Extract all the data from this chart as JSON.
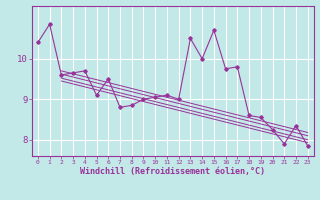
{
  "title": "",
  "xlabel": "Windchill (Refroidissement éolien,°C)",
  "bg_color": "#c2e8e8",
  "line_color": "#993399",
  "grid_color": "#b0d8d8",
  "hours": [
    0,
    1,
    2,
    3,
    4,
    5,
    6,
    7,
    8,
    9,
    10,
    11,
    12,
    13,
    14,
    15,
    16,
    17,
    18,
    19,
    20,
    21,
    22,
    23
  ],
  "windchill": [
    10.4,
    10.85,
    9.6,
    9.65,
    9.7,
    9.1,
    9.5,
    8.8,
    8.85,
    9.0,
    9.05,
    9.1,
    9.0,
    10.5,
    10.0,
    10.7,
    9.75,
    9.8,
    8.6,
    8.55,
    8.25,
    7.9,
    8.35,
    7.85
  ],
  "ylim": [
    7.6,
    11.3
  ],
  "yticks": [
    8,
    9,
    10
  ],
  "xlim": [
    -0.5,
    23.5
  ],
  "regression_lines": [
    {
      "x0": 2,
      "y0": 9.7,
      "x1": 23,
      "y1": 8.18
    },
    {
      "x0": 2,
      "y0": 9.62,
      "x1": 23,
      "y1": 8.1
    },
    {
      "x0": 2,
      "y0": 9.52,
      "x1": 23,
      "y1": 8.0
    },
    {
      "x0": 2,
      "y0": 9.45,
      "x1": 23,
      "y1": 7.93
    }
  ]
}
